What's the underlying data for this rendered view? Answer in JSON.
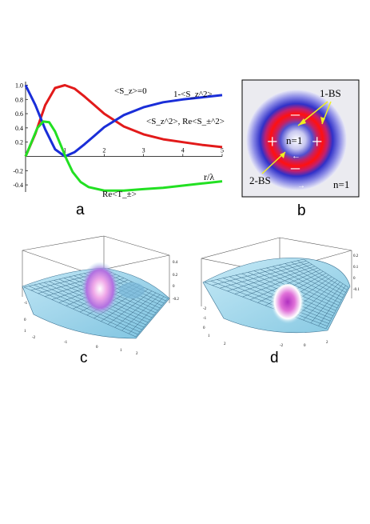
{
  "panel_a": {
    "letter": "a",
    "annotations": {
      "sz_zero": "<S_z>=0",
      "one_minus": "1-<S_z^2>",
      "sz2_re": "<S_z^2>, Re<S_±^2>",
      "re_t": "Re<T_±>"
    },
    "xlabel": "r/λ",
    "colors": {
      "red": "#e21a1a",
      "blue": "#1a2ed8",
      "green": "#22e022"
    },
    "chart_data": {
      "type": "line",
      "xlabel": "r/λ",
      "ylabel": "",
      "xlim": [
        0,
        5
      ],
      "ylim": [
        -0.5,
        1.05
      ],
      "x_ticks": [
        1,
        2,
        3,
        4,
        5
      ],
      "y_ticks": [
        "1.0",
        "0.8",
        "0.6",
        "0.4",
        "0.2",
        "-0.2",
        "-0.4"
      ],
      "series": [
        {
          "color": "#e21a1a",
          "x": [
            0,
            0.25,
            0.5,
            0.75,
            1.0,
            1.25,
            1.5,
            1.75,
            2.0,
            2.5,
            3.0,
            3.5,
            4.0,
            4.5,
            5.0
          ],
          "y": [
            0,
            0.32,
            0.72,
            0.96,
            1.0,
            0.95,
            0.84,
            0.72,
            0.6,
            0.42,
            0.31,
            0.24,
            0.2,
            0.16,
            0.13
          ]
        },
        {
          "color": "#1a2ed8",
          "x": [
            0,
            0.25,
            0.5,
            0.75,
            1.0,
            1.25,
            1.5,
            1.75,
            2.0,
            2.5,
            3.0,
            3.5,
            4.0,
            4.5,
            5.0
          ],
          "y": [
            1.0,
            0.72,
            0.38,
            0.1,
            0.0,
            0.06,
            0.17,
            0.29,
            0.41,
            0.58,
            0.69,
            0.76,
            0.8,
            0.83,
            0.86
          ]
        },
        {
          "color": "#22e022",
          "x": [
            0,
            0.15,
            0.3,
            0.45,
            0.6,
            0.75,
            0.9,
            1.05,
            1.2,
            1.4,
            1.6,
            2.0,
            2.5,
            3.0,
            3.5,
            4.0,
            4.5,
            5.0
          ],
          "y": [
            0.0,
            0.2,
            0.4,
            0.49,
            0.48,
            0.35,
            0.15,
            -0.05,
            -0.22,
            -0.36,
            -0.43,
            -0.48,
            -0.48,
            -0.46,
            -0.44,
            -0.41,
            -0.38,
            -0.35
          ]
        }
      ]
    }
  },
  "panel_b": {
    "letter": "b",
    "label_1bs": "1-BS",
    "label_2bs": "2-BS",
    "center_label": "n=1",
    "corner_label": "n=1",
    "plus": "+",
    "minus": "–",
    "left_arrow": "←",
    "right_arrow": "→"
  },
  "panel_c": {
    "letter": "c",
    "ticks": [
      "0.4",
      "0.2",
      "0",
      "-0.2",
      "-1",
      "0",
      "1",
      "-2",
      "-1",
      "0",
      "1",
      "2"
    ]
  },
  "panel_d": {
    "letter": "d",
    "ticks": [
      "0.2",
      "0.1",
      "0",
      "-0.1",
      "-2",
      "-1",
      "0",
      "1",
      "2",
      "-2",
      "0",
      "2"
    ]
  }
}
